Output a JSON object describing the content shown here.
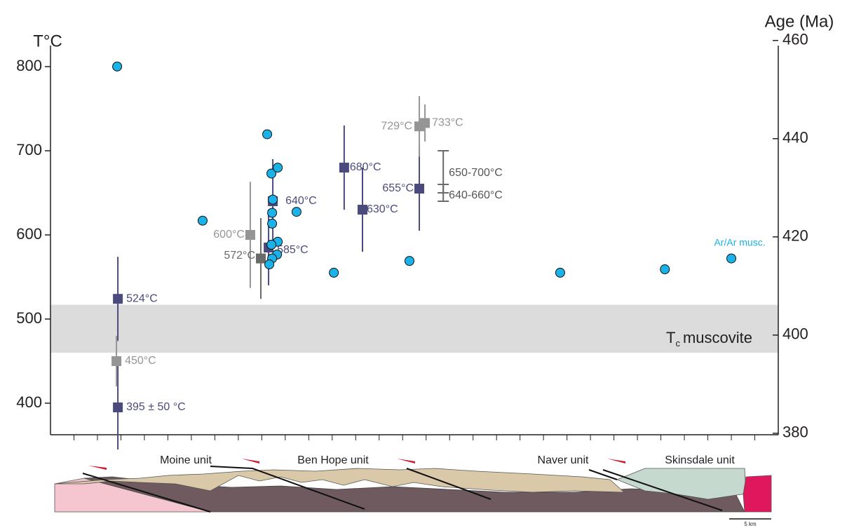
{
  "chart_data": {
    "type": "scatter",
    "y_label": "T°C",
    "y2_label": "Age (Ma)",
    "xlim": [
      -1,
      30
    ],
    "xticks": [
      0,
      1,
      2,
      3,
      4,
      5,
      6,
      7,
      8,
      9,
      10,
      11,
      12,
      13,
      14,
      15,
      16,
      17,
      18,
      19,
      20,
      21,
      22,
      23,
      24,
      25,
      26,
      27,
      28,
      29
    ],
    "ylim": [
      362.5,
      837.5
    ],
    "yticks": [
      400,
      500,
      600,
      700,
      800
    ],
    "y2lim": [
      379.7,
      461.1
    ],
    "y2ticks": [
      380,
      400,
      420,
      440,
      460
    ],
    "band": {
      "range": [
        460,
        517
      ],
      "label": "T",
      "label_sub": "c",
      "label_rest": "muscovite",
      "color": "#dcdcdc"
    },
    "series": [
      {
        "color": "#4b4a7e",
        "marker": "square",
        "x": [
          1.87,
          1.87,
          8.29,
          8.47,
          11.51,
          12.29,
          14.71
        ],
        "values": [
          524,
          395,
          585,
          640,
          680,
          630,
          655
        ],
        "errors": [
          50,
          50,
          45,
          50,
          50,
          50,
          50
        ],
        "value_labels": [
          "524°C",
          "395 ± 50 °C",
          "585°C",
          "640°C",
          "680°C",
          "630°C",
          "655°C"
        ]
      },
      {
        "color": "#959595",
        "marker": "square",
        "x": [
          1.81,
          7.51,
          14.71,
          14.95
        ],
        "values": [
          450,
          600,
          729,
          733
        ],
        "errors": [
          30,
          63,
          36,
          22
        ],
        "value_labels": [
          "450°C",
          "600°C",
          "729°C",
          "733°C"
        ]
      },
      {
        "color": "#6a6a6a",
        "marker": "square",
        "x": [
          7.96
        ],
        "values": [
          572
        ],
        "errors": [
          48
        ],
        "value_labels": [
          "572°C"
        ]
      },
      {
        "name": "Ar/Ar musc.",
        "color": "#1ab2e8",
        "marker": "circle",
        "axis": "y2",
        "x": [
          1.84,
          5.48,
          8.23,
          8.41,
          8.68,
          8.47,
          8.44,
          8.44,
          8.68,
          8.41,
          8.65,
          8.44,
          8.32,
          9.48,
          11.07,
          14.29,
          20.71,
          25.17,
          28.0
        ],
        "values": [
          454.7,
          423.3,
          440.9,
          432.9,
          434.1,
          427.6,
          424.9,
          422.7,
          419,
          418.4,
          416.4,
          415.6,
          414.4,
          425.1,
          412.7,
          415.1,
          412.7,
          413.4,
          415.6
        ]
      }
    ],
    "ranges": [
      {
        "x": 15.73,
        "low": 650,
        "high": 700,
        "label": "650-700°C",
        "color": "#6a6a6a"
      },
      {
        "x": 15.73,
        "low": 640,
        "high": 660,
        "label": "640-660°C",
        "color": "#6a6a6a"
      }
    ]
  },
  "cross_section": {
    "units": [
      "Moine unit",
      "Ben Hope unit",
      "Naver unit",
      "Skinsdale unit"
    ],
    "scale": "5 km"
  }
}
